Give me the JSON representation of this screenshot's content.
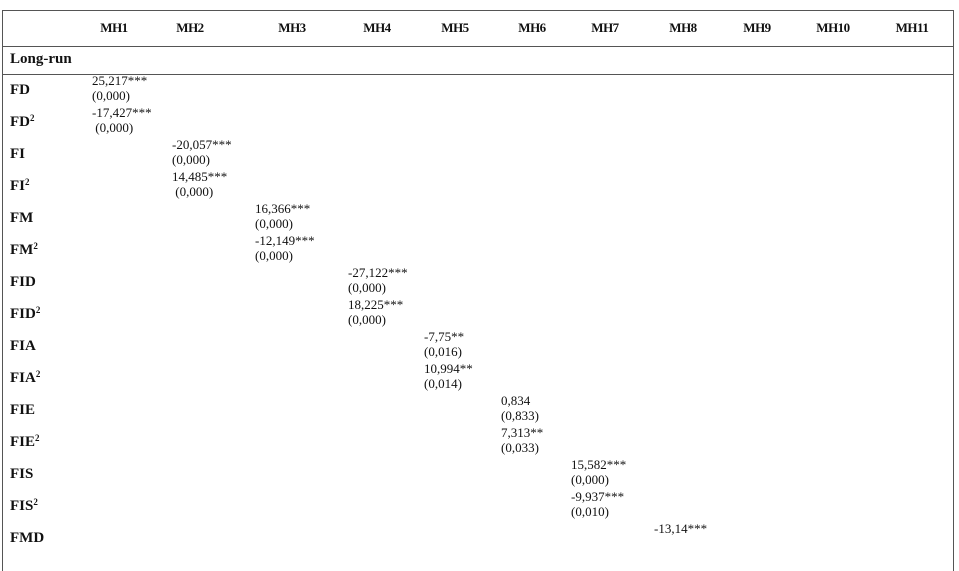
{
  "columns": [
    "MH1",
    "MH2",
    "MH3",
    "MH4",
    "MH5",
    "MH6",
    "MH7",
    "MH8",
    "MH9",
    "MH10",
    "MH11"
  ],
  "section": "Long-run",
  "rows": [
    {
      "label": "FD",
      "sup": "",
      "col": 0,
      "coef": "25,217***",
      "p": "(0,000)"
    },
    {
      "label": "FD",
      "sup": "2",
      "col": 0,
      "coef": "-17,427***",
      "p": " (0,000)"
    },
    {
      "label": "FI",
      "sup": "",
      "col": 1,
      "coef": "-20,057***",
      "p": "(0,000)"
    },
    {
      "label": "FI",
      "sup": "2",
      "col": 1,
      "coef": "14,485***",
      "p": " (0,000)"
    },
    {
      "label": "FM",
      "sup": "",
      "col": 2,
      "coef": "16,366***",
      "p": "(0,000)"
    },
    {
      "label": "FM",
      "sup": "2",
      "col": 2,
      "coef": "-12,149***",
      "p": "(0,000)"
    },
    {
      "label": "FID",
      "sup": "",
      "col": 3,
      "coef": "-27,122***",
      "p": "(0,000)"
    },
    {
      "label": "FID",
      "sup": "2",
      "col": 3,
      "coef": "18,225***",
      "p": "(0,000)"
    },
    {
      "label": "FIA",
      "sup": "",
      "col": 4,
      "coef": "-7,75**",
      "p": "(0,016)"
    },
    {
      "label": "FIA",
      "sup": "2",
      "col": 4,
      "coef": "10,994**",
      "p": "(0,014)"
    },
    {
      "label": "FIE",
      "sup": "",
      "col": 5,
      "coef": "0,834",
      "p": "(0,833)"
    },
    {
      "label": "FIE",
      "sup": "2",
      "col": 5,
      "coef": "7,313**",
      "p": "(0,033)"
    },
    {
      "label": "FIS",
      "sup": "",
      "col": 6,
      "coef": "15,582***",
      "p": "(0,000)"
    },
    {
      "label": "FIS",
      "sup": "2",
      "col": 6,
      "coef": "-9,937***",
      "p": "(0,010)"
    },
    {
      "label": "FMD",
      "sup": "",
      "col": 7,
      "coef": "-13,14***",
      "p": ""
    }
  ]
}
